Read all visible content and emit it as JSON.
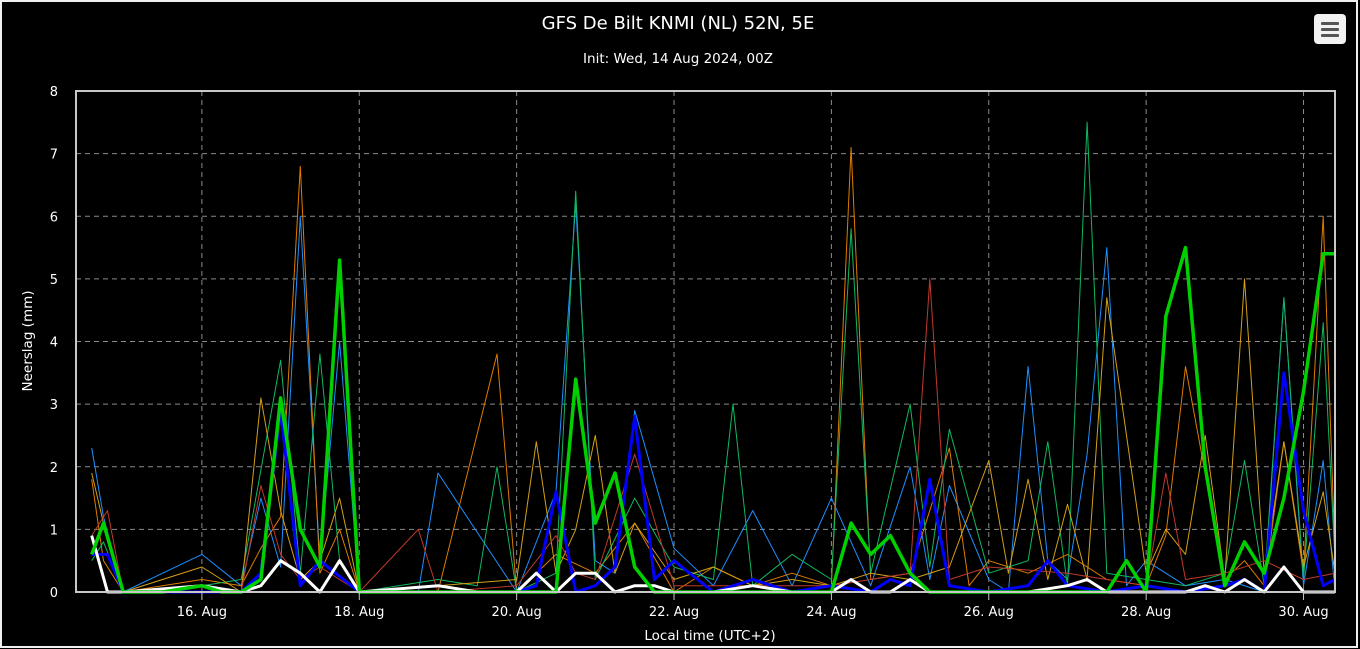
{
  "chart_data": {
    "type": "line",
    "title": "GFS De Bilt KNMI (NL) 52N, 5E",
    "subtitle": "Init: Wed, 14 Aug 2024, 00Z",
    "xlabel": "Local time (UTC+2)",
    "ylabel": "Neerslag (mm)",
    "ylim": [
      0,
      8
    ],
    "yticks": [
      "0",
      "1",
      "2",
      "3",
      "4",
      "5",
      "6",
      "7",
      "8"
    ],
    "xlim": [
      14.4,
      30.4
    ],
    "xticks": [
      {
        "value": 16,
        "label": "16. Aug"
      },
      {
        "value": 18,
        "label": "18. Aug"
      },
      {
        "value": 20,
        "label": "20. Aug"
      },
      {
        "value": 22,
        "label": "22. Aug"
      },
      {
        "value": 24,
        "label": "24. Aug"
      },
      {
        "value": 26,
        "label": "26. Aug"
      },
      {
        "value": 28,
        "label": "28. Aug"
      },
      {
        "value": 30,
        "label": "30. Aug"
      }
    ],
    "grid": true,
    "x_unit": "day of Aug 2024 (local time)",
    "series": [
      {
        "color": "#1e90ff",
        "width": 1,
        "x": [
          14.6,
          14.75,
          15.0,
          16.0,
          16.5,
          16.75,
          17.0,
          17.25,
          17.5,
          17.75,
          18.0,
          18.75,
          19.0,
          20.0,
          20.5,
          20.75,
          21.0,
          21.25,
          21.5,
          22.0,
          22.5,
          23.0,
          23.5,
          24.0,
          24.5,
          25.0,
          25.25,
          25.5,
          26.0,
          26.25,
          26.5,
          26.75,
          27.0,
          27.25,
          27.5,
          27.75,
          28.0,
          28.5,
          29.0,
          29.5,
          29.75,
          30.0,
          30.25,
          30.4
        ],
        "y": [
          2.3,
          1.2,
          0,
          0.6,
          0.1,
          1.5,
          0.4,
          6.0,
          0.5,
          4.0,
          0,
          0,
          1.9,
          0,
          1.6,
          6.2,
          0.5,
          0.3,
          2.9,
          0.7,
          0.1,
          1.3,
          0.1,
          1.5,
          0.1,
          2.0,
          0.2,
          1.7,
          0.2,
          0,
          3.6,
          0.5,
          0.2,
          2.2,
          5.5,
          0.1,
          0.5,
          0.1,
          0.2,
          0,
          4.7,
          0.1,
          2.1,
          0
        ]
      },
      {
        "color": "#e07b00",
        "width": 1,
        "x": [
          14.6,
          14.75,
          15.0,
          16.0,
          16.5,
          16.75,
          17.0,
          17.25,
          17.5,
          17.75,
          18.0,
          19.0,
          19.75,
          20.0,
          20.5,
          21.0,
          21.5,
          22.0,
          22.5,
          23.0,
          23.5,
          24.0,
          24.25,
          24.5,
          25.0,
          25.5,
          25.75,
          26.0,
          26.5,
          27.0,
          27.5,
          28.0,
          28.25,
          28.5,
          29.0,
          29.25,
          29.5,
          29.75,
          30.0,
          30.25,
          30.4
        ],
        "y": [
          1.8,
          0.5,
          0,
          0.2,
          0.1,
          0.7,
          1.2,
          6.8,
          0.3,
          1.0,
          0,
          0,
          3.8,
          0,
          0.6,
          0.3,
          1.1,
          0,
          0.4,
          0.1,
          0.3,
          0.1,
          7.1,
          0.2,
          0.3,
          2.3,
          0.1,
          0.5,
          0.3,
          0.6,
          0.2,
          0.1,
          0.9,
          3.6,
          0.2,
          0.5,
          0.1,
          2.4,
          0.3,
          6.0,
          0.6
        ]
      },
      {
        "color": "#10b860",
        "width": 1,
        "x": [
          14.6,
          14.75,
          15.0,
          16.0,
          16.5,
          17.0,
          17.25,
          17.5,
          17.75,
          18.0,
          19.0,
          19.5,
          19.75,
          20.0,
          20.5,
          20.75,
          21.0,
          21.5,
          22.0,
          22.5,
          22.75,
          23.0,
          23.5,
          24.0,
          24.25,
          24.5,
          25.0,
          25.25,
          25.5,
          26.0,
          26.5,
          26.75,
          27.0,
          27.25,
          27.5,
          28.0,
          28.5,
          29.0,
          29.25,
          29.5,
          29.75,
          30.0,
          30.25,
          30.4
        ],
        "y": [
          0.5,
          0.8,
          0,
          0.1,
          0.2,
          3.7,
          0.3,
          3.8,
          0.5,
          0,
          0.2,
          0.1,
          2.0,
          0,
          0.3,
          6.4,
          0.2,
          1.5,
          0.4,
          0.2,
          3.0,
          0.1,
          0.6,
          0.2,
          5.8,
          0.3,
          3.0,
          0.4,
          2.6,
          0.3,
          0.5,
          2.4,
          0.1,
          7.5,
          0.3,
          0.2,
          0.1,
          0.3,
          2.1,
          0.1,
          4.7,
          0.2,
          4.3,
          0.5
        ]
      },
      {
        "color": "#d4a017",
        "width": 1,
        "x": [
          14.6,
          14.75,
          15.0,
          16.0,
          16.5,
          16.75,
          17.0,
          17.25,
          17.5,
          17.75,
          18.0,
          19.0,
          20.0,
          20.25,
          20.5,
          20.75,
          21.0,
          21.25,
          21.5,
          22.0,
          22.5,
          23.0,
          23.5,
          24.0,
          24.5,
          25.0,
          25.5,
          26.0,
          26.25,
          26.5,
          26.75,
          27.0,
          27.25,
          27.5,
          28.0,
          28.25,
          28.5,
          28.75,
          29.0,
          29.25,
          29.5,
          29.75,
          30.0,
          30.25,
          30.4
        ],
        "y": [
          1.9,
          1.1,
          0,
          0.4,
          0,
          3.1,
          1.3,
          0.2,
          0.5,
          1.5,
          0,
          0.1,
          0.2,
          2.4,
          0.3,
          1.0,
          2.5,
          0.3,
          1.1,
          0.2,
          0.4,
          0.1,
          0.2,
          0.1,
          0.3,
          0.2,
          0.4,
          2.1,
          0.3,
          1.8,
          0.2,
          1.4,
          0.2,
          4.7,
          0.3,
          1.0,
          0.6,
          2.5,
          0.2,
          5.0,
          0.3,
          2.4,
          0.4,
          1.6,
          0.3
        ]
      },
      {
        "color": "#c0392b",
        "width": 1,
        "x": [
          14.6,
          14.8,
          15.0,
          16.0,
          16.5,
          16.75,
          17.0,
          17.25,
          17.5,
          18.0,
          18.75,
          19.0,
          20.0,
          20.5,
          20.75,
          21.0,
          21.5,
          22.0,
          23.0,
          24.0,
          24.5,
          25.0,
          25.25,
          25.5,
          26.0,
          27.0,
          27.5,
          28.0,
          28.25,
          28.5,
          29.0,
          29.5,
          30.0,
          30.4
        ],
        "y": [
          0.9,
          1.3,
          0,
          0.1,
          0,
          1.7,
          0.6,
          0.2,
          0.4,
          0,
          1.0,
          0,
          0.1,
          0.9,
          0.3,
          0.2,
          2.2,
          0.1,
          0.1,
          0.1,
          0.2,
          0.3,
          5.0,
          0.2,
          0.4,
          0.3,
          0.2,
          0.1,
          1.9,
          0.2,
          0.3,
          0.5,
          0.2,
          0.3
        ]
      },
      {
        "color": "#0000ff",
        "width": 3,
        "x": [
          14.6,
          14.8,
          15.0,
          16.0,
          16.5,
          16.75,
          17.0,
          17.25,
          17.5,
          18.0,
          19.0,
          20.0,
          20.25,
          20.5,
          20.75,
          21.0,
          21.25,
          21.5,
          21.75,
          22.0,
          22.5,
          23.0,
          23.5,
          24.0,
          24.5,
          24.75,
          25.0,
          25.25,
          25.5,
          26.0,
          26.5,
          26.75,
          27.0,
          27.5,
          28.0,
          28.5,
          29.0,
          29.25,
          29.5,
          29.75,
          30.0,
          30.25,
          30.4
        ],
        "y": [
          0.6,
          0.6,
          0,
          0,
          0,
          0.3,
          2.9,
          0.1,
          0.5,
          0,
          0,
          0,
          0.1,
          1.6,
          0,
          0.1,
          0.4,
          2.8,
          0.2,
          0.5,
          0,
          0.2,
          0,
          0.1,
          0,
          0.2,
          0.1,
          1.8,
          0.1,
          0,
          0.1,
          0.5,
          0.1,
          0,
          0.1,
          0,
          0.1,
          0.2,
          0,
          3.5,
          1.3,
          0.1,
          0.2
        ]
      },
      {
        "color": "#ffffff",
        "width": 3,
        "x": [
          14.6,
          14.8,
          15.0,
          16.0,
          16.5,
          16.75,
          17.0,
          17.25,
          17.5,
          17.75,
          18.0,
          19.0,
          19.5,
          20.0,
          20.25,
          20.5,
          20.75,
          21.0,
          21.25,
          21.5,
          21.75,
          22.0,
          22.5,
          23.0,
          23.5,
          24.0,
          24.25,
          24.5,
          24.75,
          25.0,
          25.25,
          25.5,
          26.0,
          26.5,
          27.0,
          27.25,
          27.5,
          28.0,
          28.5,
          28.75,
          29.0,
          29.25,
          29.5,
          29.75,
          30.0,
          30.25,
          30.4
        ],
        "y": [
          0.9,
          0,
          0,
          0.1,
          0,
          0.1,
          0.5,
          0.3,
          0,
          0.5,
          0,
          0.1,
          0,
          0,
          0.3,
          0,
          0.3,
          0.3,
          0,
          0.1,
          0.1,
          0,
          0,
          0.1,
          0,
          0,
          0.2,
          0,
          0,
          0.2,
          0,
          0,
          0,
          0,
          0.1,
          0.2,
          0,
          0,
          0,
          0.1,
          0,
          0.2,
          0,
          0.4,
          0,
          0,
          0
        ]
      },
      {
        "color": "#00d000",
        "width": 3.5,
        "x": [
          14.6,
          14.75,
          15.0,
          15.5,
          16.0,
          16.25,
          16.5,
          16.75,
          17.0,
          17.25,
          17.5,
          17.75,
          18.0,
          18.25,
          18.5,
          19.0,
          19.5,
          20.0,
          20.25,
          20.5,
          20.75,
          21.0,
          21.25,
          21.5,
          21.75,
          22.0,
          22.5,
          23.0,
          23.5,
          23.75,
          24.0,
          24.25,
          24.5,
          24.75,
          25.0,
          25.25,
          25.5,
          26.0,
          26.5,
          26.75,
          27.0,
          27.25,
          27.5,
          27.75,
          28.0,
          28.25,
          28.5,
          28.75,
          29.0,
          29.25,
          29.5,
          29.75,
          30.0,
          30.25,
          30.4
        ],
        "y": [
          0.6,
          1.1,
          0,
          0,
          0.1,
          0,
          0,
          0.2,
          3.1,
          1.0,
          0.4,
          5.3,
          0,
          0,
          0,
          0,
          0,
          0,
          0,
          0,
          3.4,
          1.1,
          1.9,
          0.4,
          0,
          0,
          0,
          0,
          0,
          0,
          0,
          1.1,
          0.6,
          0.9,
          0.3,
          0,
          0,
          0,
          0,
          0,
          0,
          0,
          0,
          0.5,
          0,
          4.4,
          5.5,
          2.0,
          0.1,
          0.8,
          0.3,
          1.5,
          3.2,
          5.4,
          5.4
        ]
      }
    ]
  }
}
